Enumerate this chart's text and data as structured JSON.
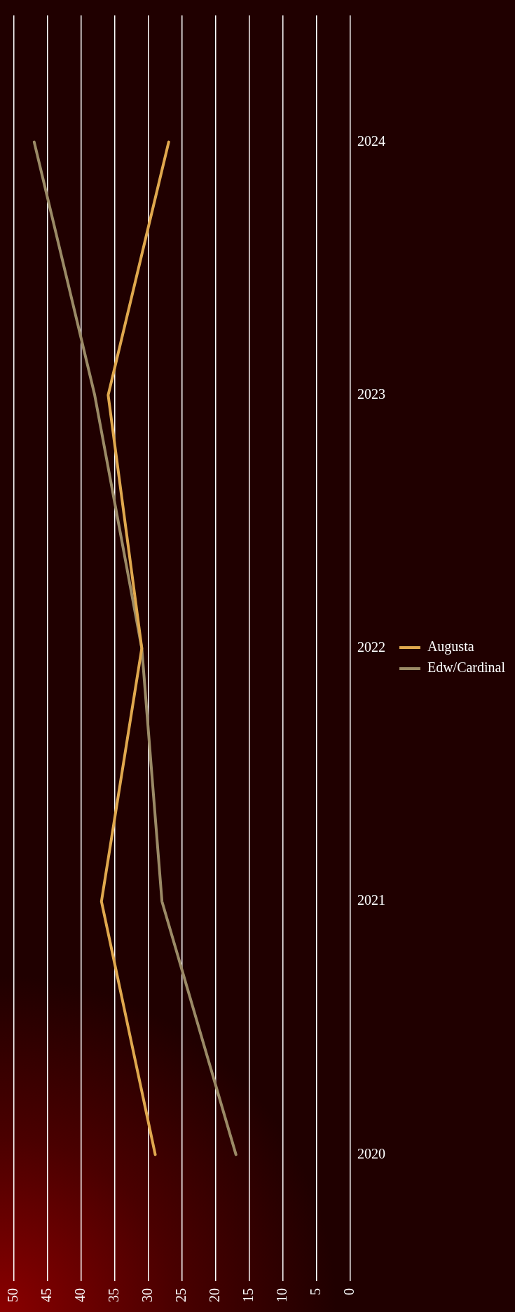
{
  "chart_data": {
    "type": "line",
    "orientation": "horizontal",
    "categories": [
      "2024",
      "2023",
      "2022",
      "2021",
      "2020"
    ],
    "series": [
      {
        "name": "Augusta",
        "color": "#e0a84e",
        "values": [
          27,
          36,
          31,
          37,
          29
        ]
      },
      {
        "name": "Edw/Cardinal",
        "color": "#9b8a66",
        "values": [
          47,
          38,
          31,
          28,
          17
        ]
      }
    ],
    "xlim": [
      50,
      0
    ],
    "xticks": [
      0,
      5,
      10,
      15,
      20,
      25,
      30,
      35,
      40,
      45,
      50
    ],
    "grid": "x",
    "legend": "right",
    "marker": "none",
    "line_style": "solid"
  }
}
